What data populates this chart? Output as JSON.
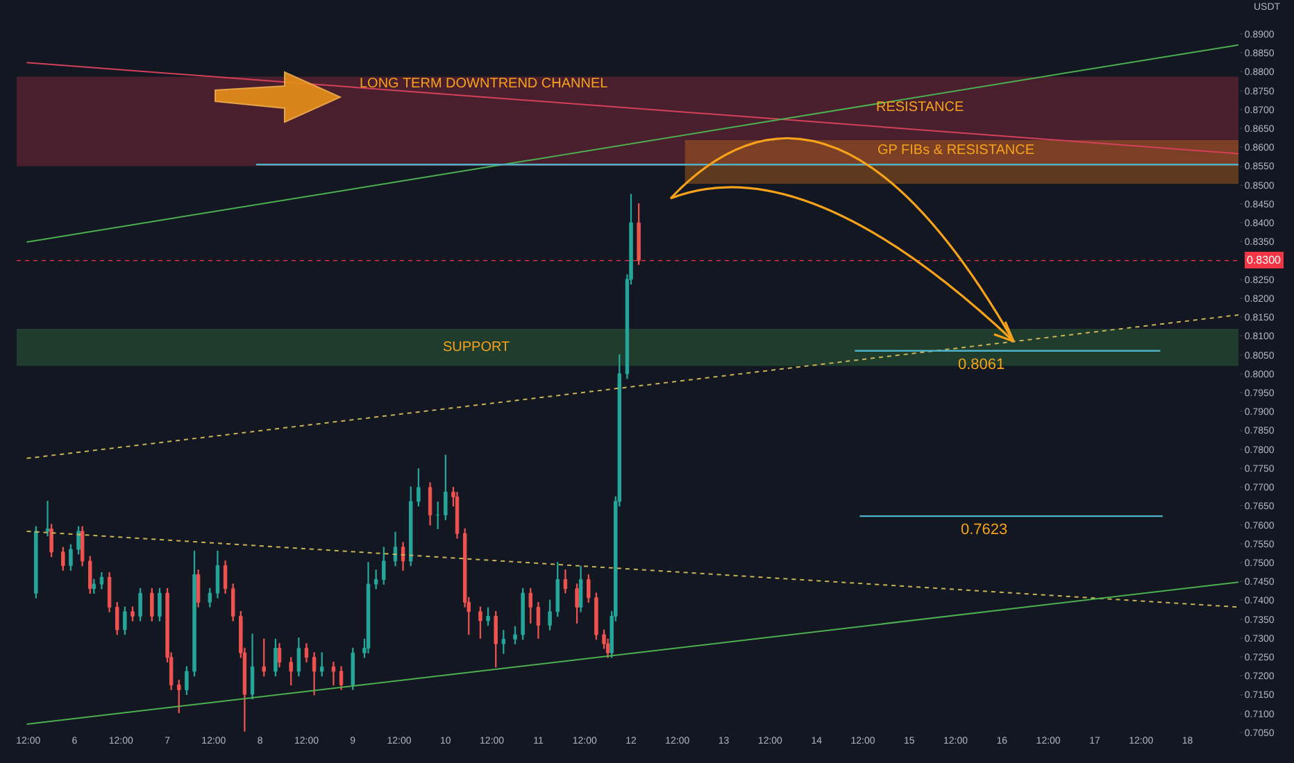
{
  "chart_data": {
    "type": "candlestick",
    "ylabel": "USDT",
    "annotations": [
      "LONG TERM DOWNTREND CHANNEL"
    ],
    "x": [
      "--01-05T14:00",
      "--01-05T17:00",
      "--01-05T18:00",
      "--01-05T21:00",
      "--01-05T23:00",
      "--01-06T01:00",
      "--01-06T02:00",
      "--01-06T04:00",
      "--01-06T05:00",
      "--01-06T07:00",
      "--01-06T09:00",
      "--01-06T11:00",
      "--01-06T13:00",
      "--01-06T15:00",
      "--01-06T17:00",
      "--01-06T20:00",
      "--01-06T22:00",
      "--01-07T00:00",
      "--01-07T01:00",
      "--01-07T03:00",
      "--01-07T05:00",
      "--01-07T07:00",
      "--01-07T08:00",
      "--01-07T11:00",
      "--01-07T13:00",
      "--01-07T15:00",
      "--01-07T17:00",
      "--01-07T19:00",
      "--01-07T20:00",
      "--01-07T22:00",
      "--01-08T01:00",
      "--01-08T04:00",
      "--01-08T05:00",
      "--01-08T08:00",
      "--01-08T10:00",
      "--01-08T12:00",
      "--01-08T14:00",
      "--01-08T16:00",
      "--01-08T19:00",
      "--01-08T21:00",
      "--01-09T00:00",
      "--01-09T03:00",
      "--01-09T04:00",
      "--01-09T06:00",
      "--01-09T08:00",
      "--01-09T11:00",
      "--01-09T13:00",
      "--01-09T15:00",
      "--01-09T17:00",
      "--01-09T20:00",
      "--01-09T22:00",
      "--01-10T00:00",
      "--01-10T02:00",
      "--01-10T03:00",
      "--01-10T05:00",
      "--01-10T06:00",
      "--01-10T09:00",
      "--01-10T11:00",
      "--01-10T13:00",
      "--01-10T15:00",
      "--01-10T18:00",
      "--01-10T20:00",
      "--01-10T22:00",
      "--01-11T00:00",
      "--01-11T03:00",
      "--01-11T05:00",
      "--01-11T07:00",
      "--01-11T10:00",
      "--01-11T11:00",
      "--01-11T13:00",
      "--01-11T15:00",
      "--01-11T17:00",
      "--01-11T18:00",
      "--01-11T19:00",
      "--01-11T20:00",
      "--01-11T21:00",
      "--01-11T23:00",
      "--01-12T00:00",
      "--01-12T02:00"
    ],
    "ohlc": [
      [
        0.7419,
        0.7595,
        0.7407,
        0.7583
      ],
      [
        0.7583,
        0.7662,
        0.7571,
        0.7589
      ],
      [
        0.7589,
        0.7601,
        0.7516,
        0.7528
      ],
      [
        0.7528,
        0.754,
        0.748,
        0.7492
      ],
      [
        0.7492,
        0.7547,
        0.748,
        0.7535
      ],
      [
        0.7535,
        0.7595,
        0.7523,
        0.7583
      ],
      [
        0.7583,
        0.7595,
        0.7492,
        0.7504
      ],
      [
        0.7504,
        0.7516,
        0.7419,
        0.7431
      ],
      [
        0.7431,
        0.7455,
        0.7419,
        0.7443
      ],
      [
        0.7443,
        0.7473,
        0.7431,
        0.7461
      ],
      [
        0.7461,
        0.7473,
        0.737,
        0.7382
      ],
      [
        0.7382,
        0.7394,
        0.731,
        0.7322
      ],
      [
        0.7322,
        0.7382,
        0.731,
        0.737
      ],
      [
        0.737,
        0.7382,
        0.7346,
        0.7358
      ],
      [
        0.7358,
        0.7431,
        0.7346,
        0.7419
      ],
      [
        0.7419,
        0.7431,
        0.7346,
        0.7358
      ],
      [
        0.7358,
        0.7431,
        0.7346,
        0.7419
      ],
      [
        0.7419,
        0.7431,
        0.7237,
        0.7249
      ],
      [
        0.7249,
        0.7261,
        0.7164,
        0.7176
      ],
      [
        0.7176,
        0.7188,
        0.7103,
        0.7163
      ],
      [
        0.7163,
        0.7224,
        0.7151,
        0.7212
      ],
      [
        0.7212,
        0.753,
        0.72,
        0.7468
      ],
      [
        0.7468,
        0.748,
        0.7383,
        0.7395
      ],
      [
        0.7395,
        0.7431,
        0.7383,
        0.7419
      ],
      [
        0.7419,
        0.753,
        0.7407,
        0.7492
      ],
      [
        0.7492,
        0.7504,
        0.7419,
        0.7431
      ],
      [
        0.7431,
        0.7443,
        0.7346,
        0.7358
      ],
      [
        0.7358,
        0.737,
        0.7249,
        0.7261
      ],
      [
        0.7261,
        0.7273,
        0.7054,
        0.7151
      ],
      [
        0.7151,
        0.731,
        0.7139,
        0.7224
      ],
      [
        0.7224,
        0.7297,
        0.72,
        0.7212
      ],
      [
        0.7212,
        0.7297,
        0.72,
        0.7273
      ],
      [
        0.7273,
        0.7285,
        0.7224,
        0.7236
      ],
      [
        0.7236,
        0.7248,
        0.7176,
        0.7212
      ],
      [
        0.7212,
        0.73,
        0.72,
        0.7273
      ],
      [
        0.7273,
        0.7285,
        0.7237,
        0.7249
      ],
      [
        0.7249,
        0.7261,
        0.715,
        0.7212
      ],
      [
        0.7212,
        0.7261,
        0.72,
        0.7224
      ],
      [
        0.7224,
        0.7236,
        0.7176,
        0.7212
      ],
      [
        0.7212,
        0.7224,
        0.7164,
        0.7176
      ],
      [
        0.7176,
        0.7273,
        0.7164,
        0.7261
      ],
      [
        0.7261,
        0.7297,
        0.7249,
        0.7273
      ],
      [
        0.7273,
        0.75,
        0.7261,
        0.7443
      ],
      [
        0.7443,
        0.748,
        0.7431,
        0.7455
      ],
      [
        0.7455,
        0.754,
        0.7443,
        0.7504
      ],
      [
        0.7504,
        0.758,
        0.7492,
        0.7541
      ],
      [
        0.7541,
        0.7553,
        0.748,
        0.7504
      ],
      [
        0.7504,
        0.77,
        0.7492,
        0.7662
      ],
      [
        0.7662,
        0.7748,
        0.765,
        0.7699
      ],
      [
        0.7699,
        0.7711,
        0.76,
        0.7626
      ],
      [
        0.7626,
        0.766,
        0.759,
        0.7626
      ],
      [
        0.7626,
        0.7784,
        0.7614,
        0.7687
      ],
      [
        0.7687,
        0.7699,
        0.765,
        0.7674
      ],
      [
        0.7674,
        0.7686,
        0.7565,
        0.7577
      ],
      [
        0.7577,
        0.7589,
        0.7383,
        0.7395
      ],
      [
        0.7395,
        0.7407,
        0.731,
        0.737
      ],
      [
        0.737,
        0.7382,
        0.73,
        0.7346
      ],
      [
        0.7346,
        0.738,
        0.7334,
        0.7358
      ],
      [
        0.7358,
        0.737,
        0.7224,
        0.7285
      ],
      [
        0.7285,
        0.732,
        0.726,
        0.7297
      ],
      [
        0.7297,
        0.733,
        0.7285,
        0.7309
      ],
      [
        0.7309,
        0.7431,
        0.7297,
        0.7419
      ],
      [
        0.7419,
        0.7431,
        0.734,
        0.7382
      ],
      [
        0.7382,
        0.7394,
        0.73,
        0.7334
      ],
      [
        0.7334,
        0.74,
        0.7322,
        0.737
      ],
      [
        0.737,
        0.75,
        0.7358,
        0.7455
      ],
      [
        0.7455,
        0.748,
        0.742,
        0.7431
      ],
      [
        0.7431,
        0.7443,
        0.734,
        0.7382
      ],
      [
        0.7382,
        0.749,
        0.737,
        0.7455
      ],
      [
        0.7455,
        0.7467,
        0.7395,
        0.7407
      ],
      [
        0.7407,
        0.7419,
        0.7297,
        0.7309
      ],
      [
        0.7309,
        0.7321,
        0.7273,
        0.7285
      ],
      [
        0.7285,
        0.7297,
        0.7249,
        0.7261
      ],
      [
        0.7261,
        0.737,
        0.7249,
        0.7358
      ],
      [
        0.7358,
        0.7674,
        0.7346,
        0.7662
      ],
      [
        0.7662,
        0.805,
        0.765,
        0.8
      ],
      [
        0.8,
        0.8262,
        0.7988,
        0.825
      ],
      [
        0.825,
        0.8475,
        0.8238,
        0.84
      ],
      [
        0.84,
        0.845,
        0.829,
        0.83
      ]
    ],
    "series": [
      {
        "type": "line",
        "color": "#d4405a",
        "x": [
          "--01-05T11:37",
          "--01-18T13:12"
        ],
        "values": [
          0.8824,
          0.8583
        ]
      },
      {
        "type": "line",
        "color": "#4caf50",
        "x": [
          "--01-05T11:37",
          "--01-18T13:12"
        ],
        "values": [
          0.8349,
          0.8871
        ]
      },
      {
        "type": "line",
        "color": "#c9b458",
        "line_style": "dotted",
        "x": [
          "--01-05T11:37",
          "--01-18T13:12"
        ],
        "values": [
          0.7776,
          0.8156
        ]
      },
      {
        "type": "line",
        "color": "#c9b458",
        "line_style": "dotted",
        "x": [
          "--01-05T11:37",
          "--01-18T13:12"
        ],
        "values": [
          0.7583,
          0.7382
        ]
      },
      {
        "type": "line",
        "color": "#4caf50",
        "x": [
          "--01-05T11:37",
          "--01-18T13:12"
        ],
        "values": [
          0.7072,
          0.7448
        ]
      }
    ],
    "bands": [
      {
        "axis": "y",
        "from": 0.855,
        "to": 0.8787,
        "label": "RESISTANCE",
        "color": "#8b2b3f"
      },
      {
        "axis": "y",
        "from": 0.8503,
        "to": 0.8619,
        "label": "GP FIBs & RESISTANCE",
        "color": "#b8651b"
      },
      {
        "axis": "y",
        "from": 0.8021,
        "to": 0.8119,
        "label": "SUPPORT",
        "color": "#2e6b3a"
      }
    ],
    "ref_lines": [
      {
        "axis": "y",
        "value": 0.8554,
        "label": null,
        "color": "#4fb3c8"
      },
      {
        "axis": "y",
        "value": 0.8061,
        "label": "0.8061",
        "color": "#4fb3c8"
      },
      {
        "axis": "y",
        "value": 0.7623,
        "label": "0.7623",
        "color": "#4fb3c8"
      },
      {
        "axis": "y",
        "value": 0.83,
        "label": "0.8300",
        "color": "#f23645",
        "line_style": "dotted"
      }
    ],
    "xlim": [
      "--01-05T09:00",
      "--01-18T13:12"
    ],
    "xticks": [
      {
        "value": "--01-05T12:00",
        "label": "12:00"
      },
      {
        "value": "--01-06",
        "label": "6"
      },
      {
        "value": "--01-06T12:00",
        "label": "12:00"
      },
      {
        "value": "--01-07",
        "label": "7"
      },
      {
        "value": "--01-07T12:00",
        "label": "12:00"
      },
      {
        "value": "--01-08",
        "label": "8"
      },
      {
        "value": "--01-08T12:00",
        "label": "12:00"
      },
      {
        "value": "--01-09",
        "label": "9"
      },
      {
        "value": "--01-09T12:00",
        "label": "12:00"
      },
      {
        "value": "--01-10",
        "label": "10"
      },
      {
        "value": "--01-10T12:00",
        "label": "12:00"
      },
      {
        "value": "--01-11",
        "label": "11"
      },
      {
        "value": "--01-11T12:00",
        "label": "12:00"
      },
      {
        "value": "--01-12",
        "label": "12"
      },
      {
        "value": "--01-12T12:00",
        "label": "12:00"
      },
      {
        "value": "--01-13",
        "label": "13"
      },
      {
        "value": "--01-13T12:00",
        "label": "12:00"
      },
      {
        "value": "--01-14",
        "label": "14"
      },
      {
        "value": "--01-14T12:00",
        "label": "12:00"
      },
      {
        "value": "--01-15",
        "label": "15"
      },
      {
        "value": "--01-15T12:00",
        "label": "12:00"
      },
      {
        "value": "--01-16",
        "label": "16"
      },
      {
        "value": "--01-16T12:00",
        "label": "12:00"
      },
      {
        "value": "--01-17",
        "label": "17"
      },
      {
        "value": "--01-17T12:00",
        "label": "12:00"
      },
      {
        "value": "--01-18",
        "label": "18"
      }
    ],
    "ylim": [
      0.705,
      0.899
    ],
    "yticks": [
      {
        "value": 0.705,
        "label": "0.7050"
      },
      {
        "value": 0.71,
        "label": "0.7100"
      },
      {
        "value": 0.715,
        "label": "0.7150"
      },
      {
        "value": 0.72,
        "label": "0.7200"
      },
      {
        "value": 0.725,
        "label": "0.7250"
      },
      {
        "value": 0.73,
        "label": "0.7300"
      },
      {
        "value": 0.735,
        "label": "0.7350"
      },
      {
        "value": 0.74,
        "label": "0.7400"
      },
      {
        "value": 0.745,
        "label": "0.7450"
      },
      {
        "value": 0.75,
        "label": "0.7500"
      },
      {
        "value": 0.755,
        "label": "0.7550"
      },
      {
        "value": 0.76,
        "label": "0.7600"
      },
      {
        "value": 0.765,
        "label": "0.7650"
      },
      {
        "value": 0.77,
        "label": "0.7700"
      },
      {
        "value": 0.775,
        "label": "0.7750"
      },
      {
        "value": 0.78,
        "label": "0.7800"
      },
      {
        "value": 0.785,
        "label": "0.7850"
      },
      {
        "value": 0.79,
        "label": "0.7900"
      },
      {
        "value": 0.795,
        "label": "0.7950"
      },
      {
        "value": 0.8,
        "label": "0.8000"
      },
      {
        "value": 0.805,
        "label": "0.8050"
      },
      {
        "value": 0.81,
        "label": "0.8100"
      },
      {
        "value": 0.815,
        "label": "0.8150"
      },
      {
        "value": 0.82,
        "label": "0.8200"
      },
      {
        "value": 0.825,
        "label": "0.8250"
      },
      {
        "value": 0.835,
        "label": "0.8350"
      },
      {
        "value": 0.84,
        "label": "0.8400"
      },
      {
        "value": 0.845,
        "label": "0.8450"
      },
      {
        "value": 0.85,
        "label": "0.8500"
      },
      {
        "value": 0.855,
        "label": "0.8550"
      },
      {
        "value": 0.86,
        "label": "0.8600"
      },
      {
        "value": 0.865,
        "label": "0.8650"
      },
      {
        "value": 0.87,
        "label": "0.8700"
      },
      {
        "value": 0.875,
        "label": "0.8750"
      },
      {
        "value": 0.88,
        "label": "0.8800"
      },
      {
        "value": 0.885,
        "label": "0.8850"
      },
      {
        "value": 0.89,
        "label": "0.8900"
      }
    ]
  }
}
